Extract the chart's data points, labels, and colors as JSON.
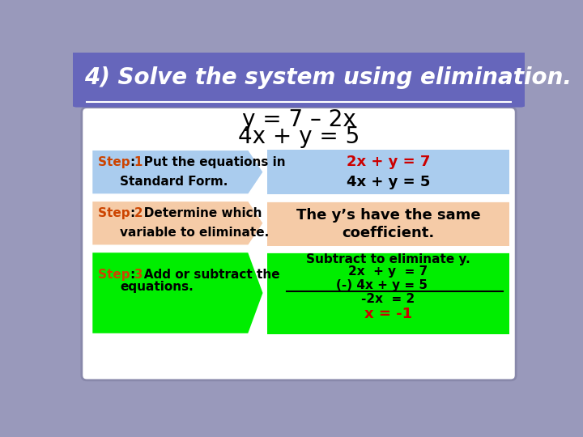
{
  "title": "4) Solve the system using elimination.",
  "title_bg": "#6666bb",
  "title_color": "#ffffff",
  "outer_bg": "#9999bb",
  "inner_bg": "#ffffff",
  "eq1": "y = 7 – 2x",
  "eq2": "4x + y = 5",
  "step1_label": "Step 1",
  "step1_rest": ":  Put the equations in",
  "step1_line2": "Standard Form.",
  "step1_color": "#aaccee",
  "step2_label": "Step 2",
  "step2_rest": ":  Determine which",
  "step2_line2": "variable to eliminate.",
  "step2_color": "#f5cba7",
  "step3_label": "Step 3",
  "step3_rest": ":  Add or subtract the",
  "step3_line2": "equations.",
  "step3_color": "#00ee00",
  "result1_color": "#aaccee",
  "result1_line1": "2x + y = 7",
  "result1_line2": "4x + y = 5",
  "result2_color": "#f5cba7",
  "result2_line1": "The y’s have the same",
  "result2_line2": "coefficient.",
  "result3_color": "#00ee00",
  "result3_title": "Subtract to eliminate y.",
  "result3_line1": "2x  + y  = 7",
  "result3_line2": "(-) 4x + y = 5",
  "result3_line3": "-2x  = 2",
  "result3_line4": "x = -1",
  "orange_label": "#cc4400",
  "red_text": "#cc0000",
  "black_text": "#000000"
}
